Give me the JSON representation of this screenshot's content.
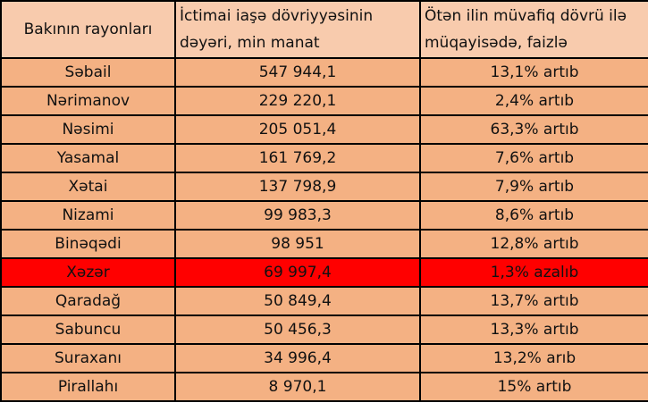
{
  "header": {
    "district": "Bakının rayonları",
    "value": "İctimai iaşə dövriyyəsinin dəyəri, min manat",
    "change": "Ötən ilin müvafiq dövrü ilə müqayisədə, faizlə"
  },
  "highlight_color": "#FF0000",
  "rows": [
    {
      "district": "Səbail",
      "value": "547 944,1",
      "change": "13,1%  artıb",
      "highlighted": false
    },
    {
      "district": "Nərimanov",
      "value": "229 220,1",
      "change": "2,4% artıb",
      "highlighted": false
    },
    {
      "district": "Nəsimi",
      "value": "205 051,4",
      "change": "63,3% artıb",
      "highlighted": false
    },
    {
      "district": "Yasamal",
      "value": "161 769,2",
      "change": "7,6% artıb",
      "highlighted": false
    },
    {
      "district": "Xətai",
      "value": "137 798,9",
      "change": "7,9% artıb",
      "highlighted": false
    },
    {
      "district": "Nizami",
      "value": "99 983,3",
      "change": "8,6% artıb",
      "highlighted": false
    },
    {
      "district": "Binəqədi",
      "value": "98 951",
      "change": "12,8% artıb",
      "highlighted": false
    },
    {
      "district": "Xəzər",
      "value": "69 997,4",
      "change": "1,3% azalıb",
      "highlighted": true
    },
    {
      "district": "Qaradağ",
      "value": "50 849,4",
      "change": "13,7% artıb",
      "highlighted": false
    },
    {
      "district": "Sabuncu",
      "value": "50 456,3",
      "change": "13,3% artıb",
      "highlighted": false
    },
    {
      "district": "Suraxanı",
      "value": "34 996,4",
      "change": "13,2% arıb",
      "highlighted": false
    },
    {
      "district": "Pirallahı",
      "value": "8 970,1",
      "change": "15% artıb",
      "highlighted": false
    }
  ]
}
